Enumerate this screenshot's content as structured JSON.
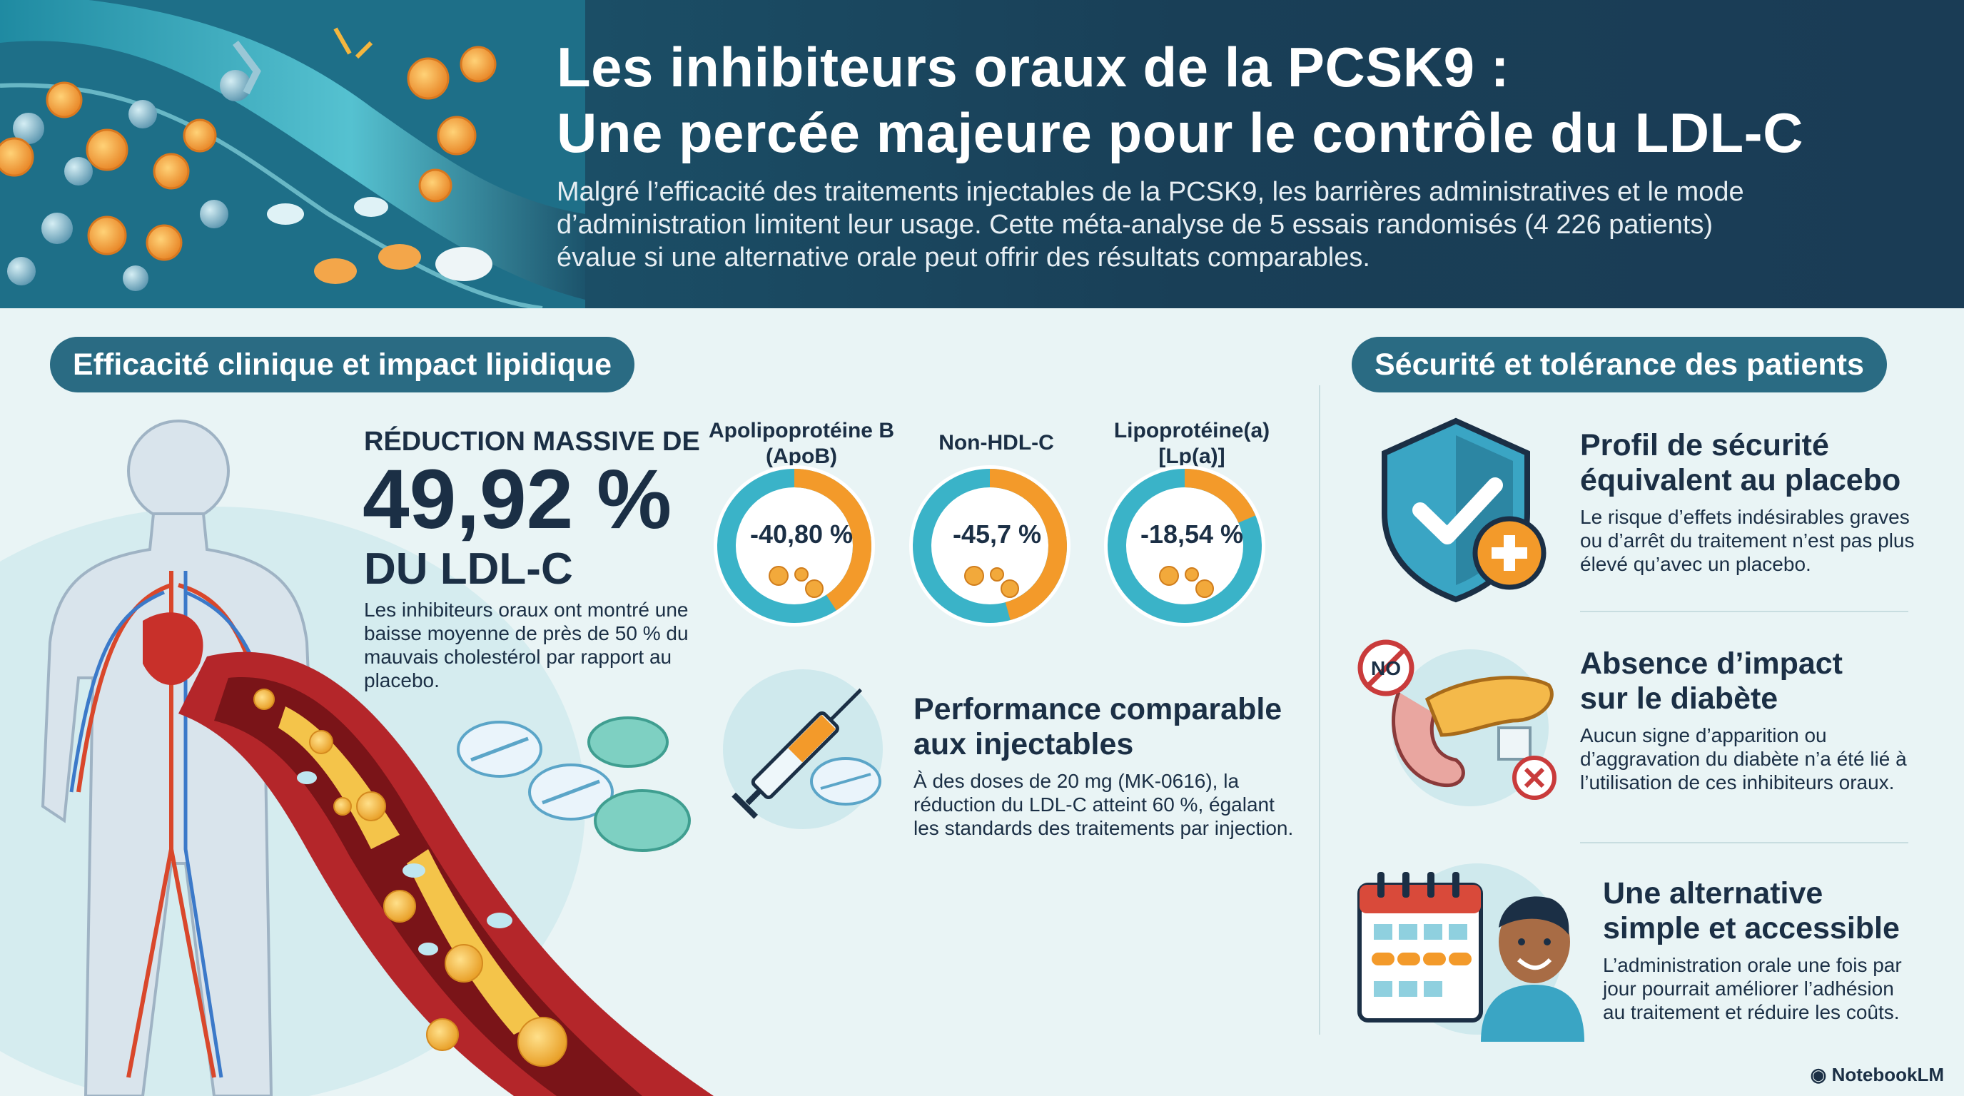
{
  "header": {
    "title_line1": "Les inhibiteurs oraux de la PCSK9 :",
    "title_line2": "Une percée majeure pour le contrôle du LDL-C",
    "intro": "Malgré l’efficacité des traitements injectables de la PCSK9, les barrières administratives et le mode d’administration limitent leur usage. Cette méta-analyse de 5 essais randomisés (4 226 patients) évalue si une alternative orale peut offrir des résultats comparables."
  },
  "efficacy": {
    "section_title": "Efficacité clinique et impact lipidique",
    "reduction_prefix": "RÉDUCTION MASSIVE DE",
    "reduction_value": "49,92 %",
    "reduction_suffix": "DU LDL-C",
    "reduction_text": "Les inhibiteurs oraux ont montré une baisse moyenne de près de 50 % du mauvais cholestérol par rapport au placebo.",
    "rings": [
      {
        "label_line1": "Apolipoprotéine B",
        "label_line2": "(ApoB)",
        "value": "-40,80 %",
        "fraction": 0.408
      },
      {
        "label_line1": "Non-HDL-C",
        "label_line2": "",
        "value": "-45,7 %",
        "fraction": 0.457
      },
      {
        "label_line1": "Lipoprotéine(a)",
        "label_line2": "[Lp(a)]",
        "value": "-18,54 %",
        "fraction": 0.1854
      }
    ],
    "injectables_title_line1": "Performance comparable",
    "injectables_title_line2": "aux injectables",
    "injectables_text": "À des doses de 20 mg (MK-0616), la réduction du LDL-C atteint 60 %, égalant les standards des traitements par injection."
  },
  "safety": {
    "section_title": "Sécurité et tolérance des patients",
    "items": [
      {
        "title_line1": "Profil de sécurité",
        "title_line2": "équivalent au placebo",
        "text": "Le risque d’effets indésirables graves ou d’arrêt du traitement n’est pas plus élevé qu’avec un placebo."
      },
      {
        "title_line1": "Absence d’impact",
        "title_line2": "sur le diabète",
        "text": "Aucun signe d’apparition ou d’aggravation du diabète n’a été lié à l’utilisation de ces inhibiteurs oraux.",
        "badge": "NO"
      },
      {
        "title_line1": "Une alternative",
        "title_line2": "simple et accessible",
        "text": "L’administration orale une fois par jour pourrait améliorer l’adhésion au traitement et réduire les coûts."
      }
    ]
  },
  "branding": {
    "logo": "NotebookLM"
  },
  "colors": {
    "teal": "#3ab3c8",
    "orange": "#f39a2a",
    "navy": "#1b2f45",
    "header": "#1a3c55",
    "pill": "#2a6b83"
  }
}
